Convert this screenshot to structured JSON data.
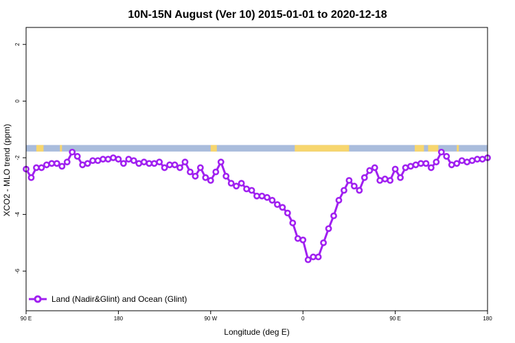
{
  "chart_data": {
    "type": "line",
    "title": "10N-15N August (Ver 10)   2015-01-01 to 2020-12-18",
    "xlabel": "Longitude (deg E)",
    "ylabel": "XCO2 - MLO trend (ppm)",
    "x_ticks": [
      {
        "value": -90,
        "label": "90 E"
      },
      {
        "value": 0,
        "label": "180"
      },
      {
        "value": 90,
        "label": "90 W"
      },
      {
        "value": 180,
        "label": "0"
      },
      {
        "value": 270,
        "label": "90 E"
      },
      {
        "value": 360,
        "label": "180"
      }
    ],
    "y_ticks": [
      {
        "value": 2,
        "label": "2"
      },
      {
        "value": 0,
        "label": "0"
      },
      {
        "value": -2,
        "label": "-2"
      },
      {
        "value": -4,
        "label": "-4"
      },
      {
        "value": -6,
        "label": "-6"
      }
    ],
    "xlim": [
      -90,
      360
    ],
    "ylim": [
      -7.4,
      2.6
    ],
    "grid": false,
    "legend_position": "bottom-left",
    "land_ocean_strip": {
      "y_top": -1.55,
      "y_bottom": -1.78,
      "ocean_color": "#a9bcdc",
      "land_color": "#f7d66e",
      "land_x_ranges": [
        [
          -80,
          -73
        ],
        [
          -57,
          -55
        ],
        [
          90,
          96
        ],
        [
          172,
          225
        ],
        [
          289,
          298
        ],
        [
          302,
          312
        ],
        [
          330,
          332
        ]
      ]
    },
    "series": [
      {
        "name": "Land (Nadir&Glint) and Ocean (Glint)",
        "color": "#a020f0",
        "x": [
          -90,
          -85,
          -80,
          -75,
          -70,
          -65,
          -60,
          -55,
          -50,
          -45,
          -40,
          -35,
          -30,
          -25,
          -20,
          -15,
          -10,
          -5,
          0,
          5,
          10,
          15,
          20,
          25,
          30,
          35,
          40,
          45,
          50,
          55,
          60,
          65,
          70,
          75,
          80,
          85,
          90,
          95,
          100,
          105,
          110,
          115,
          120,
          125,
          130,
          135,
          140,
          145,
          150,
          155,
          160,
          165,
          170,
          175,
          180,
          185,
          190,
          195,
          200,
          205,
          210,
          215,
          220,
          225,
          230,
          235,
          240,
          245,
          250,
          255,
          260,
          265,
          270,
          275,
          280,
          285,
          290,
          295,
          300,
          305,
          310,
          315,
          320,
          325,
          330,
          335,
          340,
          345,
          350,
          355,
          360
        ],
        "y": [
          -2.4,
          -2.7,
          -2.35,
          -2.35,
          -2.25,
          -2.2,
          -2.2,
          -2.3,
          -2.15,
          -1.8,
          -1.95,
          -2.25,
          -2.2,
          -2.1,
          -2.1,
          -2.05,
          -2.05,
          -2.0,
          -2.05,
          -2.2,
          -2.05,
          -2.1,
          -2.2,
          -2.15,
          -2.2,
          -2.2,
          -2.15,
          -2.35,
          -2.25,
          -2.25,
          -2.35,
          -2.15,
          -2.5,
          -2.65,
          -2.35,
          -2.7,
          -2.8,
          -2.5,
          -2.15,
          -2.65,
          -2.9,
          -3.0,
          -2.9,
          -3.1,
          -3.15,
          -3.35,
          -3.35,
          -3.4,
          -3.5,
          -3.65,
          -3.75,
          -3.95,
          -4.3,
          -4.85,
          -4.9,
          -5.6,
          -5.5,
          -5.5,
          -5.0,
          -4.5,
          -4.05,
          -3.5,
          -3.15,
          -2.8,
          -3.0,
          -3.15,
          -2.7,
          -2.45,
          -2.35,
          -2.8,
          -2.75,
          -2.8,
          -2.4,
          -2.7,
          -2.35,
          -2.3,
          -2.25,
          -2.2,
          -2.2,
          -2.35,
          -2.15,
          -1.8,
          -1.95,
          -2.25,
          -2.2,
          -2.1,
          -2.15,
          -2.1,
          -2.05,
          -2.05,
          -2.0
        ]
      }
    ]
  }
}
